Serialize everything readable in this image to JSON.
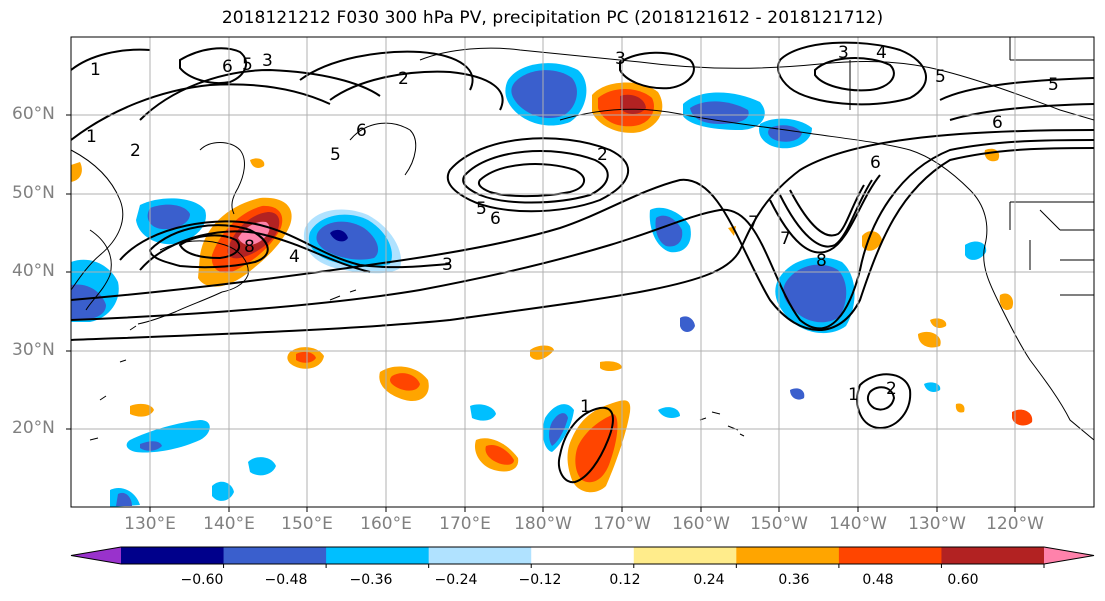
{
  "title": "2018121212 F030 300 hPa PV, precipitation PC (2018121612 - 2018121712)",
  "map": {
    "lat_labels": [
      "60°N",
      "50°N",
      "40°N",
      "30°N",
      "20°N"
    ],
    "lon_labels": [
      "130°E",
      "140°E",
      "150°E",
      "160°E",
      "170°E",
      "180°W",
      "170°W",
      "160°W",
      "150°W",
      "140°W",
      "130°W",
      "120°W"
    ],
    "pv_contour_labels": [
      "1",
      "2",
      "3",
      "4",
      "5",
      "6",
      "7",
      "8",
      "6",
      "5",
      "4",
      "3",
      "2",
      "1",
      "1",
      "2",
      "2",
      "3",
      "5",
      "6",
      "6",
      "5",
      "3",
      "5",
      "6",
      "7",
      "8",
      "1"
    ],
    "grid": true,
    "coastline_color": "#000000"
  },
  "colorbar": {
    "tick_labels": [
      "−0.60",
      "−0.48",
      "−0.36",
      "−0.24",
      "−0.12",
      "0.12",
      "0.24",
      "0.36",
      "0.48",
      "0.60"
    ],
    "colors": [
      "#9932cc",
      "#00008b",
      "#3a5fcd",
      "#00bfff",
      "#b0e2ff",
      "#ffffff",
      "#ffec8b",
      "#ffa500",
      "#ff4500",
      "#b22222",
      "#ff82ab"
    ],
    "extend": "both"
  }
}
